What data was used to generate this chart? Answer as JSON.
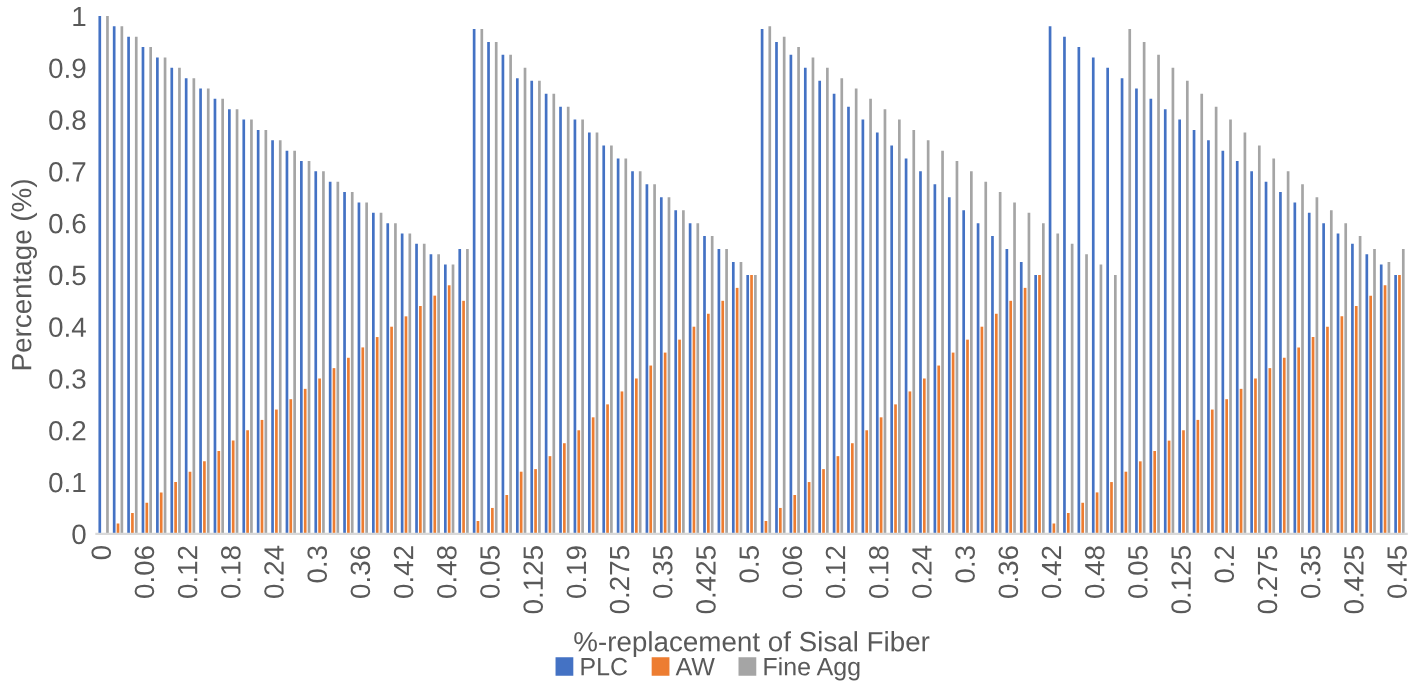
{
  "chart_data": {
    "type": "bar",
    "xlabel": "%-replacement of Sisal Fiber",
    "ylabel": "Percentage (%)",
    "categories": [
      "0",
      null,
      null,
      "0.06",
      null,
      null,
      "0.12",
      null,
      null,
      "0.18",
      null,
      null,
      "0.24",
      null,
      null,
      "0.3",
      null,
      null,
      "0.36",
      null,
      null,
      "0.42",
      null,
      null,
      "0.48",
      null,
      null,
      "0.05",
      null,
      null,
      "0.125",
      null,
      null,
      "0.19",
      null,
      null,
      "0.275",
      null,
      null,
      "0.35",
      null,
      null,
      "0.425",
      null,
      null,
      "0.5",
      null,
      null,
      "0.06",
      null,
      null,
      "0.12",
      null,
      null,
      "0.18",
      null,
      null,
      "0.24",
      null,
      null,
      "0.3",
      null,
      null,
      "0.36",
      null,
      null,
      "0.42",
      null,
      null,
      "0.48",
      null,
      null,
      "0.05",
      null,
      null,
      "0.125",
      null,
      null,
      "0.2",
      null,
      null,
      "0.275",
      null,
      null,
      "0.35",
      null,
      null,
      "0.425",
      null,
      null,
      "0.45"
    ],
    "series": [
      {
        "name": "PLC",
        "color": "#4472c4",
        "values": [
          1.0,
          0.98,
          0.96,
          0.94,
          0.92,
          0.9,
          0.88,
          0.86,
          0.84,
          0.82,
          0.8,
          0.78,
          0.76,
          0.74,
          0.72,
          0.7,
          0.68,
          0.66,
          0.64,
          0.62,
          0.6,
          0.58,
          0.56,
          0.54,
          0.52,
          0.55,
          0.975,
          0.95,
          0.925,
          0.88,
          0.875,
          0.85,
          0.825,
          0.8,
          0.775,
          0.75,
          0.725,
          0.7,
          0.675,
          0.65,
          0.625,
          0.6,
          0.575,
          0.55,
          0.525,
          0.5,
          0.975,
          0.95,
          0.925,
          0.9,
          0.875,
          0.85,
          0.825,
          0.8,
          0.775,
          0.75,
          0.725,
          0.7,
          0.675,
          0.65,
          0.625,
          0.6,
          0.575,
          0.55,
          0.525,
          0.5,
          0.98,
          0.96,
          0.94,
          0.92,
          0.9,
          0.88,
          0.86,
          0.84,
          0.82,
          0.8,
          0.78,
          0.76,
          0.74,
          0.72,
          0.7,
          0.68,
          0.66,
          0.64,
          0.62,
          0.6,
          0.58,
          0.56,
          0.54,
          0.52,
          0.5
        ]
      },
      {
        "name": "AW",
        "color": "#ed7d31",
        "values": [
          0,
          0.02,
          0.04,
          0.06,
          0.08,
          0.1,
          0.12,
          0.14,
          0.16,
          0.18,
          0.2,
          0.22,
          0.24,
          0.26,
          0.28,
          0.3,
          0.32,
          0.34,
          0.36,
          0.38,
          0.4,
          0.42,
          0.44,
          0.46,
          0.48,
          0.45,
          0.025,
          0.05,
          0.075,
          0.12,
          0.125,
          0.15,
          0.175,
          0.2,
          0.225,
          0.25,
          0.275,
          0.3,
          0.325,
          0.35,
          0.375,
          0.4,
          0.425,
          0.45,
          0.475,
          0.5,
          0.025,
          0.05,
          0.075,
          0.1,
          0.125,
          0.15,
          0.175,
          0.2,
          0.225,
          0.25,
          0.275,
          0.3,
          0.325,
          0.35,
          0.375,
          0.4,
          0.425,
          0.45,
          0.475,
          0.5,
          0.02,
          0.04,
          0.06,
          0.08,
          0.1,
          0.12,
          0.14,
          0.16,
          0.18,
          0.2,
          0.22,
          0.24,
          0.26,
          0.28,
          0.3,
          0.32,
          0.34,
          0.36,
          0.38,
          0.4,
          0.42,
          0.44,
          0.46,
          0.48,
          0.5
        ]
      },
      {
        "name": "Fine Agg",
        "color": "#a5a5a5",
        "values": [
          1.0,
          0.98,
          0.96,
          0.94,
          0.92,
          0.9,
          0.88,
          0.86,
          0.84,
          0.82,
          0.8,
          0.78,
          0.76,
          0.74,
          0.72,
          0.7,
          0.68,
          0.66,
          0.64,
          0.62,
          0.6,
          0.58,
          0.56,
          0.54,
          0.52,
          0.55,
          0.975,
          0.95,
          0.925,
          0.9,
          0.875,
          0.85,
          0.825,
          0.8,
          0.775,
          0.75,
          0.725,
          0.7,
          0.675,
          0.65,
          0.625,
          0.6,
          0.575,
          0.55,
          0.525,
          0.5,
          0.98,
          0.96,
          0.94,
          0.92,
          0.9,
          0.88,
          0.86,
          0.84,
          0.82,
          0.8,
          0.78,
          0.76,
          0.74,
          0.72,
          0.7,
          0.68,
          0.66,
          0.64,
          0.62,
          0.6,
          0.58,
          0.56,
          0.54,
          0.52,
          0.5,
          0.975,
          0.95,
          0.925,
          0.9,
          0.875,
          0.85,
          0.825,
          0.8,
          0.775,
          0.75,
          0.725,
          0.7,
          0.675,
          0.65,
          0.625,
          0.6,
          0.575,
          0.55,
          0.525,
          0.55
        ]
      }
    ],
    "ylim": [
      0,
      1
    ],
    "yticks": [
      0,
      0.1,
      0.2,
      0.3,
      0.4,
      0.5,
      0.6,
      0.7,
      0.8,
      0.9,
      1
    ],
    "grid": false,
    "legend": "bottom"
  }
}
